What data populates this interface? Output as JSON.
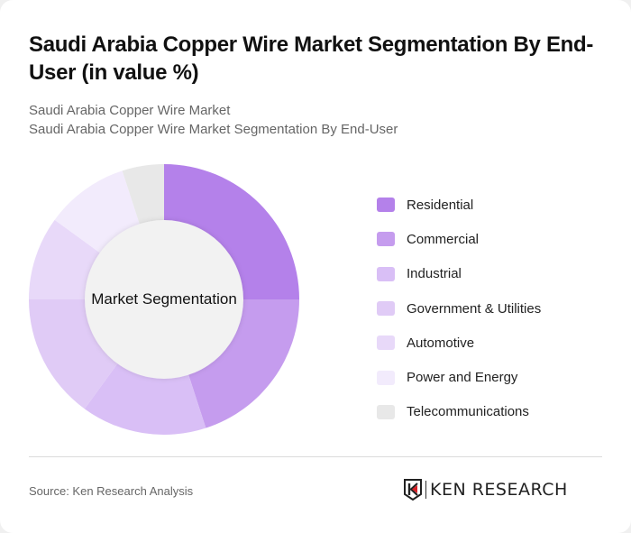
{
  "header": {
    "title": "Saudi Arabia Copper Wire Market Segmentation By End-User (in value %)",
    "subtitle_1": "Saudi Arabia Copper Wire Market",
    "subtitle_2": "Saudi Arabia Copper Wire Market Segmentation By End-User"
  },
  "chart": {
    "center_label": "Market Segmentation"
  },
  "legend": {
    "items": [
      {
        "label": "Residential",
        "color": "#b481ea"
      },
      {
        "label": "Commercial",
        "color": "#c59cee"
      },
      {
        "label": "Industrial",
        "color": "#d9bff6"
      },
      {
        "label": "Government & Utilities",
        "color": "#e0cbf6"
      },
      {
        "label": "Automotive",
        "color": "#e8d9f9"
      },
      {
        "label": "Power and Energy",
        "color": "#f2ebfc"
      },
      {
        "label": "Telecommunications",
        "color": "#e8e8e8"
      }
    ]
  },
  "footer": {
    "source": "Source: Ken Research Analysis",
    "logo_text": "KEN RESEARCH"
  },
  "chart_data": {
    "type": "pie",
    "variant": "donut",
    "title": "Saudi Arabia Copper Wire Market Segmentation By End-User (in value %)",
    "center_label": "Market Segmentation",
    "categories": [
      "Residential",
      "Commercial",
      "Industrial",
      "Government & Utilities",
      "Automotive",
      "Power and Energy",
      "Telecommunications"
    ],
    "values": [
      25,
      20,
      15,
      15,
      10,
      10,
      5
    ],
    "colors": [
      "#b481ea",
      "#c59cee",
      "#d9bff6",
      "#e0cbf6",
      "#e8d9f9",
      "#f2ebfc",
      "#e8e8e8"
    ],
    "legend_position": "right",
    "unit": "%"
  }
}
